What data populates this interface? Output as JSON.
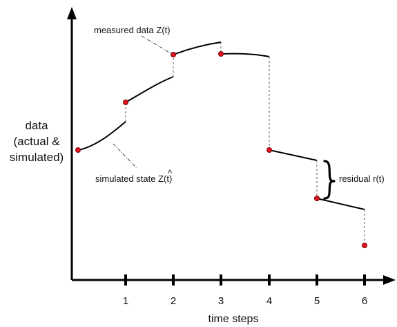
{
  "figure": {
    "y_axis_label": [
      "data",
      "(actual &",
      "simulated)"
    ],
    "x_axis_label": "time steps",
    "ticks": [
      "1",
      "2",
      "3",
      "4",
      "5",
      "6"
    ],
    "measured_label": "measured data Z(t)",
    "simulated_label_prefix": "simulated state ",
    "simulated_label_symbol": "Z",
    "simulated_label_hat": "^",
    "simulated_label_suffix": "(t)",
    "residual_label": "residual r(t)",
    "colors": {
      "axis": "#000000",
      "curve": "#000000",
      "measured_point": "#e0141e",
      "measured_point_stroke": "#7a0000",
      "dashed_link": "#555555"
    }
  }
}
